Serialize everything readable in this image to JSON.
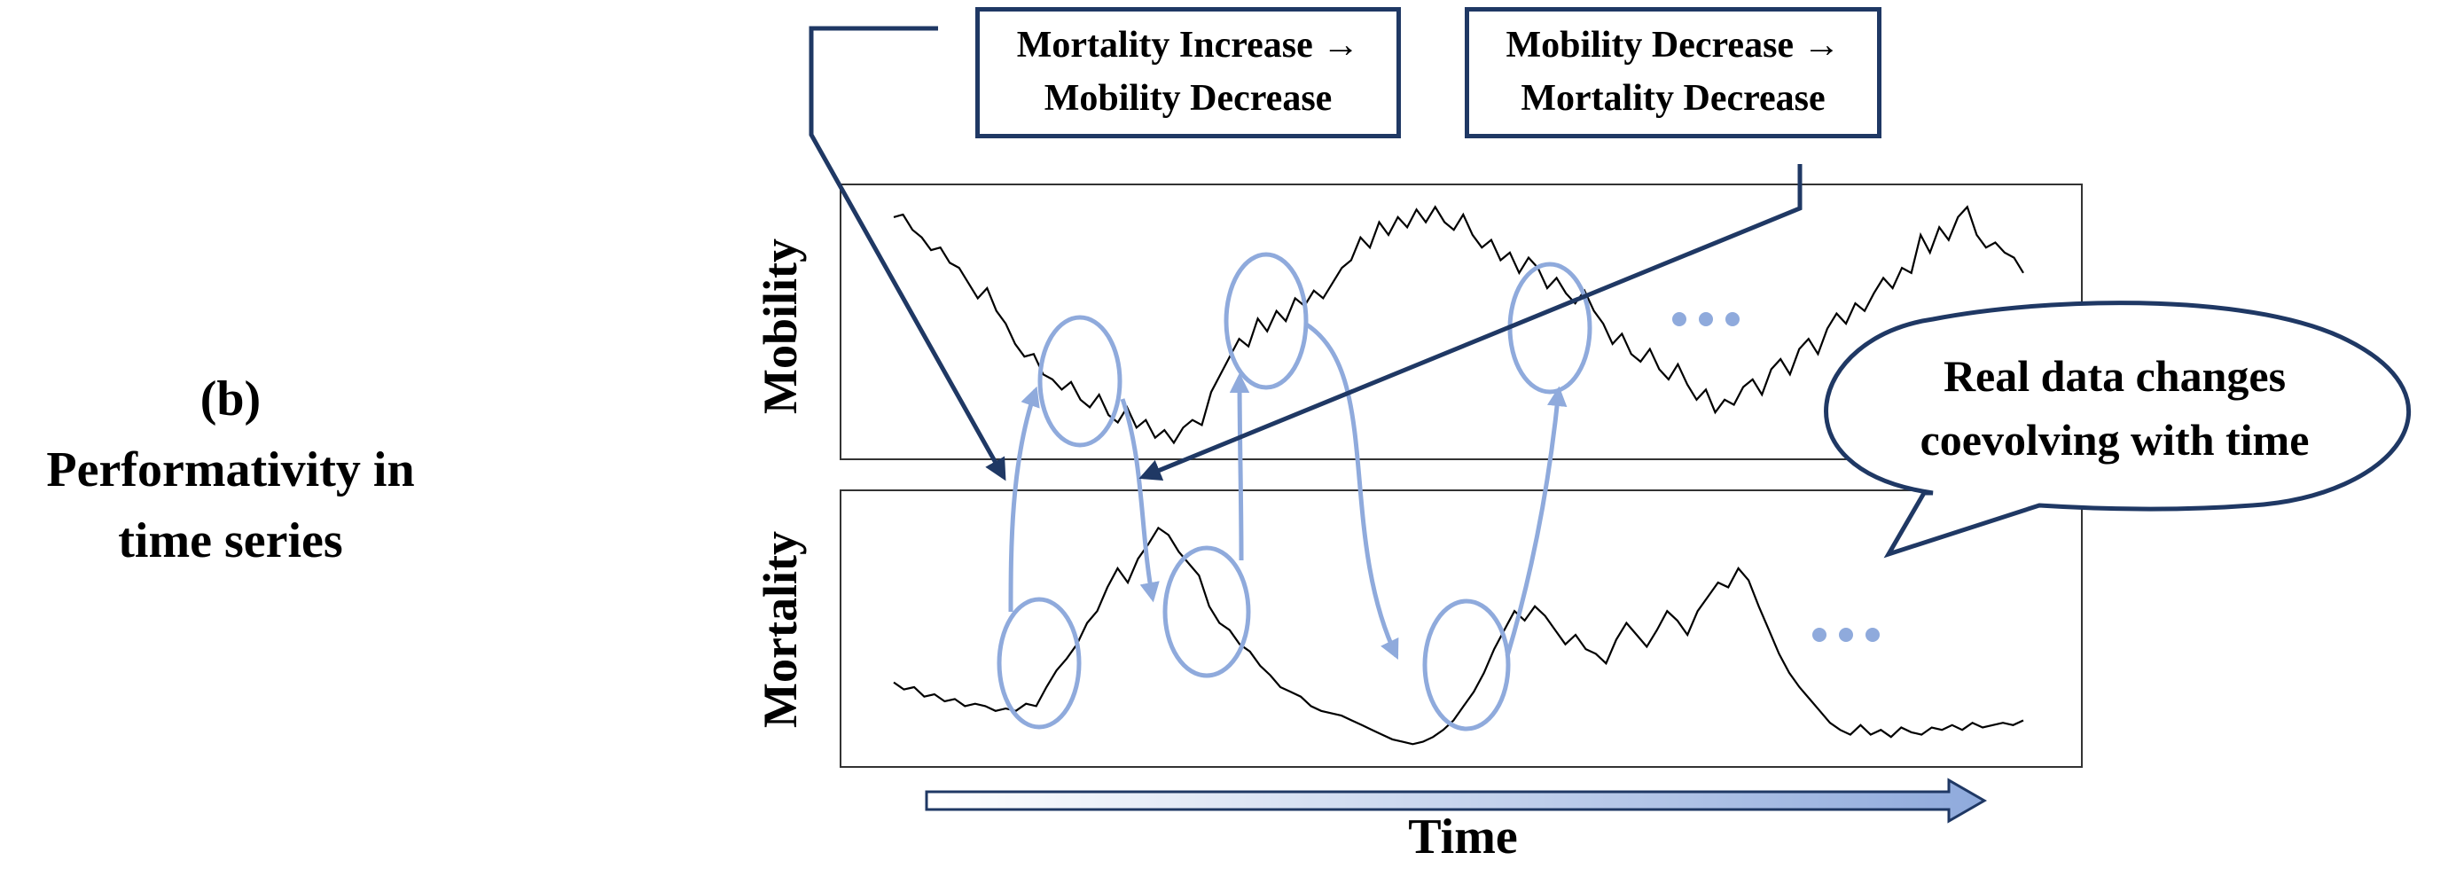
{
  "panel_label": {
    "letter": "(b)",
    "line1": "Performativity in",
    "line2": "time series"
  },
  "box_left": {
    "line1": "Mortality Increase →",
    "line2": "Mobility Decrease"
  },
  "box_right": {
    "line1": "Mobility Decrease →",
    "line2": "Mortality Decrease"
  },
  "axis_labels": {
    "top": "Mobility",
    "bottom": "Mortality",
    "time": "Time"
  },
  "bubble": {
    "line1": "Real data changes",
    "line2": "coevolving with time"
  },
  "colors": {
    "arrow_dark": "#1f3864",
    "loop_blue": "#8faadc",
    "series_line": "#000000"
  },
  "chart_data": [
    {
      "type": "line",
      "name_label": "Mobility",
      "values": [
        0.92,
        0.93,
        0.87,
        0.84,
        0.79,
        0.8,
        0.74,
        0.72,
        0.66,
        0.6,
        0.64,
        0.55,
        0.5,
        0.42,
        0.37,
        0.38,
        0.3,
        0.28,
        0.24,
        0.27,
        0.2,
        0.17,
        0.22,
        0.14,
        0.11,
        0.17,
        0.09,
        0.12,
        0.05,
        0.08,
        0.03,
        0.09,
        0.12,
        0.1,
        0.23,
        0.3,
        0.37,
        0.44,
        0.41,
        0.52,
        0.47,
        0.55,
        0.51,
        0.6,
        0.57,
        0.63,
        0.6,
        0.66,
        0.72,
        0.75,
        0.84,
        0.8,
        0.9,
        0.85,
        0.92,
        0.88,
        0.95,
        0.9,
        0.96,
        0.9,
        0.87,
        0.93,
        0.85,
        0.8,
        0.83,
        0.75,
        0.78,
        0.7,
        0.76,
        0.72,
        0.64,
        0.68,
        0.62,
        0.58,
        0.63,
        0.55,
        0.5,
        0.42,
        0.46,
        0.38,
        0.35,
        0.4,
        0.32,
        0.28,
        0.34,
        0.26,
        0.2,
        0.24,
        0.15,
        0.2,
        0.18,
        0.25,
        0.28,
        0.22,
        0.32,
        0.36,
        0.3,
        0.4,
        0.44,
        0.38,
        0.48,
        0.54,
        0.5,
        0.58,
        0.55,
        0.62,
        0.68,
        0.64,
        0.72,
        0.7,
        0.85,
        0.78,
        0.88,
        0.83,
        0.92,
        0.96,
        0.85,
        0.8,
        0.82,
        0.78,
        0.76,
        0.7
      ],
      "ellipses_on_index": [
        18,
        40,
        73
      ],
      "continues": true
    },
    {
      "type": "line",
      "name_label": "Mortality",
      "values": [
        0.3,
        0.27,
        0.28,
        0.24,
        0.25,
        0.22,
        0.23,
        0.2,
        0.21,
        0.2,
        0.18,
        0.19,
        0.18,
        0.21,
        0.2,
        0.28,
        0.35,
        0.4,
        0.46,
        0.55,
        0.6,
        0.7,
        0.78,
        0.72,
        0.82,
        0.88,
        0.95,
        0.92,
        0.85,
        0.8,
        0.75,
        0.62,
        0.55,
        0.52,
        0.46,
        0.43,
        0.37,
        0.33,
        0.28,
        0.26,
        0.24,
        0.2,
        0.18,
        0.17,
        0.16,
        0.14,
        0.12,
        0.1,
        0.08,
        0.06,
        0.05,
        0.04,
        0.05,
        0.07,
        0.1,
        0.14,
        0.2,
        0.26,
        0.34,
        0.44,
        0.52,
        0.6,
        0.56,
        0.62,
        0.58,
        0.52,
        0.46,
        0.5,
        0.44,
        0.42,
        0.38,
        0.48,
        0.55,
        0.5,
        0.45,
        0.52,
        0.6,
        0.56,
        0.5,
        0.6,
        0.66,
        0.72,
        0.7,
        0.78,
        0.73,
        0.62,
        0.52,
        0.42,
        0.34,
        0.28,
        0.23,
        0.18,
        0.13,
        0.1,
        0.08,
        0.12,
        0.08,
        0.1,
        0.07,
        0.11,
        0.09,
        0.08,
        0.11,
        0.1,
        0.12,
        0.1,
        0.13,
        0.11,
        0.12,
        0.13,
        0.12,
        0.14
      ],
      "ellipses_on_index": [
        17,
        30,
        64
      ],
      "continues": true
    }
  ]
}
